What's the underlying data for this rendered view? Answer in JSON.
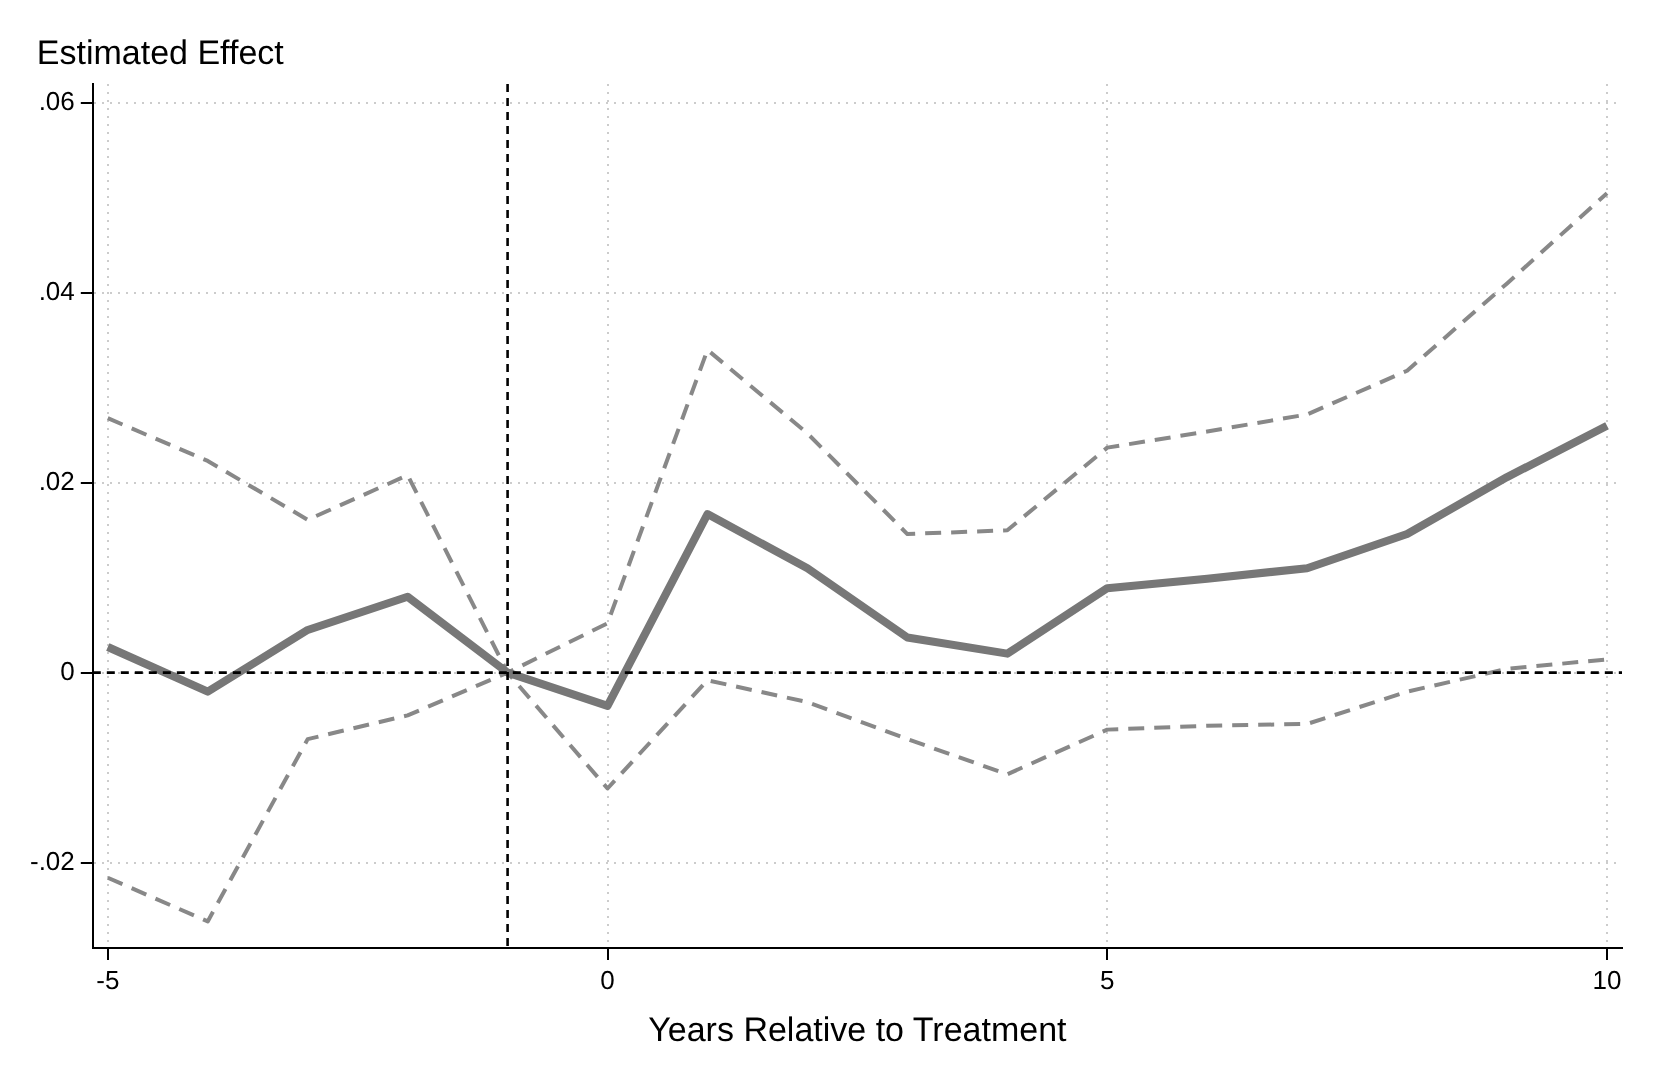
{
  "chart_data": {
    "type": "line",
    "ylabel": "Estimated Effect",
    "xlabel": "Years Relative to Treatment",
    "x": [
      -5,
      -4,
      -3,
      -2,
      -1,
      0,
      1,
      2,
      3,
      4,
      5,
      6,
      7,
      8,
      9,
      10
    ],
    "series": [
      {
        "color": "#777777",
        "line_style": "solid",
        "values": [
          0.0027,
          -0.002,
          0.0045,
          0.008,
          0,
          -0.0035,
          0.0167,
          0.011,
          0.0037,
          0.002,
          0.0089,
          0.0099,
          0.011,
          0.0146,
          0.0206,
          0.026
        ]
      },
      {
        "color": "#888888",
        "line_style": "dashed",
        "values": [
          0.0268,
          0.0223,
          0.0161,
          0.0208,
          0,
          0.0052,
          0.034,
          0.0252,
          0.0146,
          0.015,
          0.0237,
          0.0254,
          0.0272,
          0.0318,
          0.041,
          0.0505
        ]
      },
      {
        "color": "#888888",
        "line_style": "dashed",
        "values": [
          -0.0216,
          -0.0262,
          -0.007,
          -0.0045,
          0,
          -0.0122,
          -0.0008,
          -0.0031,
          -0.007,
          -0.0107,
          -0.006,
          -0.0056,
          -0.0054,
          -0.002,
          0.0004,
          0.0014
        ]
      }
    ],
    "xlim": [
      -5.15,
      10.15
    ],
    "xticks": [
      -5,
      0,
      5,
      10
    ],
    "ylim": [
      -0.029,
      0.062
    ],
    "yticks": [
      {
        "value": -0.02,
        "label": "-.02"
      },
      0,
      {
        "value": 0.02,
        "label": ".02"
      },
      {
        "value": 0.04,
        "label": ".04"
      },
      {
        "value": 0.06,
        "label": ".06"
      }
    ],
    "ref_lines": [
      {
        "axis": "x",
        "value": -1,
        "color": "#000000",
        "line_style": "dashed"
      },
      {
        "axis": "y",
        "value": 0,
        "color": "#000000",
        "line_style": "dashed"
      }
    ],
    "grid": true,
    "legend": false,
    "marker": "none"
  }
}
